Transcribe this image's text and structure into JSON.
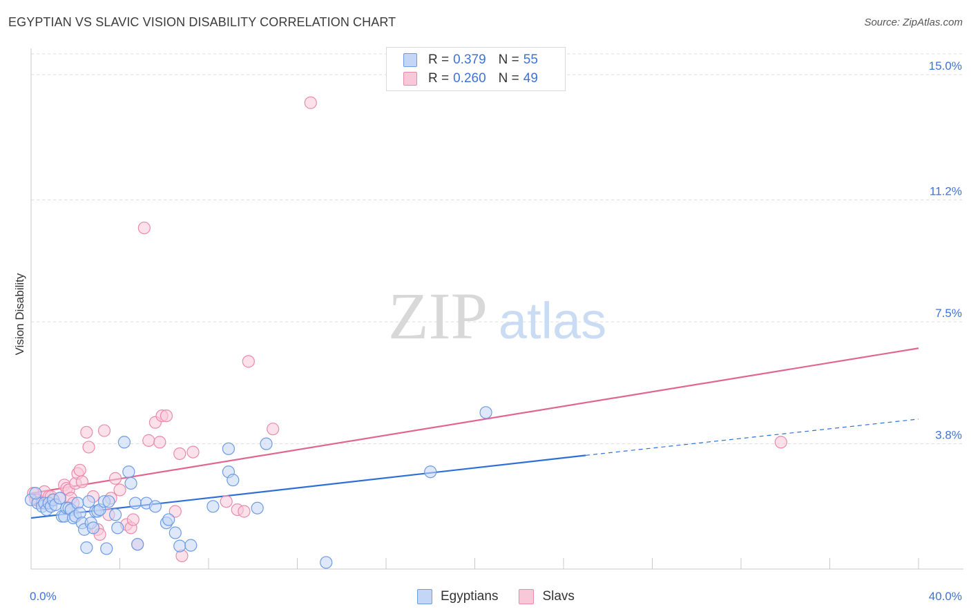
{
  "header": {
    "title": "EGYPTIAN VS SLAVIC VISION DISABILITY CORRELATION CHART",
    "source": "Source: ZipAtlas.com"
  },
  "legend": {
    "r_label": "R =",
    "n_label": "N =",
    "series": [
      {
        "r": "0.379",
        "n": "55"
      },
      {
        "r": "0.260",
        "n": "49"
      }
    ]
  },
  "bottom_legend": [
    "Egyptians",
    "Slavs"
  ],
  "watermark": {
    "zip": "ZIP",
    "atlas": "atlas"
  },
  "colors": {
    "egyptians_fill": "#c3d6f5",
    "egyptians_stroke": "#6b9be3",
    "egyptians_line": "#2d6fd6",
    "slavs_fill": "#f9c8d8",
    "slavs_stroke": "#ea8aa9",
    "slavs_line": "#e0668f",
    "value_text": "#3d73d6"
  },
  "chart_data": {
    "type": "scatter",
    "title": "EGYPTIAN VS SLAVIC VISION DISABILITY CORRELATION CHART",
    "ylabel": "Vision Disability",
    "xlabel": "",
    "xlim": [
      0,
      40
    ],
    "ylim": [
      0,
      15.8
    ],
    "x_tick_labels": [
      "0.0%",
      "40.0%"
    ],
    "y_ticks": [
      3.8,
      7.5,
      11.2,
      15.0
    ],
    "y_tick_labels": [
      "3.8%",
      "7.5%",
      "11.2%",
      "15.0%"
    ],
    "grid": "horizontal dashed",
    "legend_position": "top-center",
    "series": [
      {
        "name": "Egyptians",
        "r": 0.379,
        "n": 55,
        "trend": {
          "x0": 0,
          "y0": 1.55,
          "x1": 25,
          "y1": 3.45,
          "dashed_to_x": 40,
          "dashed_to_y": 4.55
        },
        "points": [
          [
            0,
            2.1
          ],
          [
            0.3,
            2.0
          ],
          [
            0.5,
            1.9
          ],
          [
            0.6,
            2.0
          ],
          [
            0.7,
            1.8
          ],
          [
            0.8,
            2.0
          ],
          [
            0.9,
            1.9
          ],
          [
            1.0,
            2.1
          ],
          [
            1.1,
            1.95
          ],
          [
            1.3,
            2.15
          ],
          [
            1.4,
            1.6
          ],
          [
            1.5,
            1.6
          ],
          [
            1.6,
            1.85
          ],
          [
            1.7,
            1.85
          ],
          [
            1.8,
            1.8
          ],
          [
            1.9,
            1.55
          ],
          [
            2.0,
            1.6
          ],
          [
            2.1,
            2.0
          ],
          [
            2.2,
            1.7
          ],
          [
            2.3,
            1.4
          ],
          [
            2.4,
            1.2
          ],
          [
            2.5,
            0.65
          ],
          [
            2.6,
            2.05
          ],
          [
            2.7,
            1.4
          ],
          [
            2.8,
            1.25
          ],
          [
            2.9,
            1.75
          ],
          [
            3.0,
            1.75
          ],
          [
            3.1,
            1.8
          ],
          [
            3.3,
            2.05
          ],
          [
            3.4,
            0.62
          ],
          [
            3.5,
            2.05
          ],
          [
            3.8,
            1.65
          ],
          [
            3.9,
            1.25
          ],
          [
            4.2,
            3.85
          ],
          [
            4.4,
            2.95
          ],
          [
            4.5,
            2.6
          ],
          [
            4.7,
            2.0
          ],
          [
            4.8,
            0.75
          ],
          [
            5.2,
            2.0
          ],
          [
            5.6,
            1.9
          ],
          [
            6.1,
            1.4
          ],
          [
            6.2,
            1.5
          ],
          [
            6.5,
            1.1
          ],
          [
            6.7,
            0.7
          ],
          [
            7.2,
            0.72
          ],
          [
            8.2,
            1.9
          ],
          [
            8.9,
            3.65
          ],
          [
            8.9,
            2.95
          ],
          [
            9.1,
            2.7
          ],
          [
            10.2,
            1.85
          ],
          [
            10.6,
            3.8
          ],
          [
            13.3,
            0.2
          ],
          [
            18.0,
            2.95
          ],
          [
            20.5,
            4.75
          ],
          [
            0.2,
            2.3
          ]
        ]
      },
      {
        "name": "Slavs",
        "r": 0.26,
        "n": 49,
        "trend": {
          "x0": 0,
          "y0": 2.3,
          "x1": 40,
          "y1": 6.7
        },
        "points": [
          [
            0.1,
            2.3
          ],
          [
            0.2,
            2.1
          ],
          [
            0.3,
            2.1
          ],
          [
            0.5,
            2.0
          ],
          [
            0.6,
            2.35
          ],
          [
            0.8,
            2.2
          ],
          [
            0.9,
            2.2
          ],
          [
            1.0,
            2.1
          ],
          [
            1.3,
            2.15
          ],
          [
            1.5,
            2.55
          ],
          [
            1.6,
            2.45
          ],
          [
            1.7,
            2.4
          ],
          [
            1.8,
            2.15
          ],
          [
            1.9,
            2.0
          ],
          [
            2.0,
            2.6
          ],
          [
            2.1,
            2.9
          ],
          [
            2.2,
            3.0
          ],
          [
            2.3,
            2.65
          ],
          [
            2.5,
            4.15
          ],
          [
            2.6,
            3.7
          ],
          [
            2.8,
            2.2
          ],
          [
            3.0,
            1.2
          ],
          [
            3.1,
            1.05
          ],
          [
            3.3,
            4.2
          ],
          [
            3.5,
            1.65
          ],
          [
            3.6,
            2.15
          ],
          [
            3.8,
            2.75
          ],
          [
            4.0,
            2.4
          ],
          [
            4.3,
            1.35
          ],
          [
            4.5,
            1.25
          ],
          [
            4.6,
            1.5
          ],
          [
            4.8,
            0.75
          ],
          [
            5.1,
            10.35
          ],
          [
            5.3,
            3.9
          ],
          [
            5.6,
            4.45
          ],
          [
            5.8,
            3.85
          ],
          [
            5.9,
            4.65
          ],
          [
            6.1,
            4.65
          ],
          [
            6.5,
            1.75
          ],
          [
            6.7,
            3.5
          ],
          [
            6.8,
            0.4
          ],
          [
            7.3,
            3.55
          ],
          [
            8.8,
            2.05
          ],
          [
            9.3,
            1.8
          ],
          [
            9.6,
            1.75
          ],
          [
            9.8,
            6.3
          ],
          [
            10.9,
            4.25
          ],
          [
            12.6,
            14.15
          ],
          [
            33.8,
            3.85
          ]
        ]
      }
    ]
  }
}
